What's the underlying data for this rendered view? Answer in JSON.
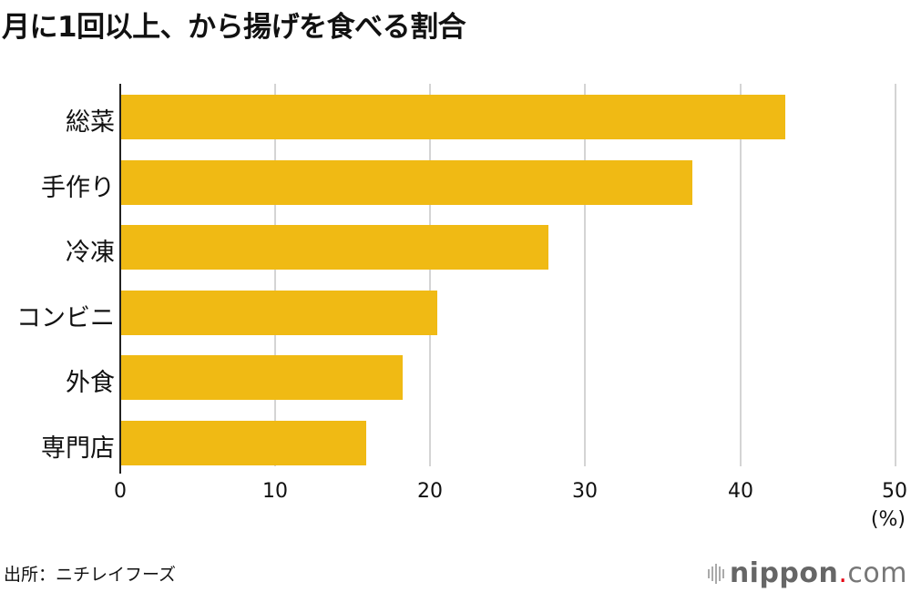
{
  "title": "月に1回以上、から揚げを食べる割合",
  "source": "出所：ニチレイフーズ",
  "logo": {
    "brand": "nippon",
    "dot": ".",
    "tld": "com"
  },
  "colors": {
    "bar": "#f0ba14",
    "grid": "#d4d4d4",
    "logo_dot": "#e60012"
  },
  "chart_data": {
    "type": "bar",
    "orientation": "horizontal",
    "title": "月に1回以上、から揚げを食べる割合",
    "categories": [
      "総菜",
      "手作り",
      "冷凍",
      "コンビニ",
      "外食",
      "専門店"
    ],
    "values": [
      42.9,
      36.9,
      27.6,
      20.4,
      18.2,
      15.8
    ],
    "xlabel": "(%)",
    "ylabel": "",
    "xlim": [
      0,
      50
    ],
    "xticks": [
      "0",
      "10",
      "20",
      "30",
      "40",
      "50"
    ],
    "grid": true,
    "legend": null,
    "source": "出所：ニチレイフーズ"
  }
}
